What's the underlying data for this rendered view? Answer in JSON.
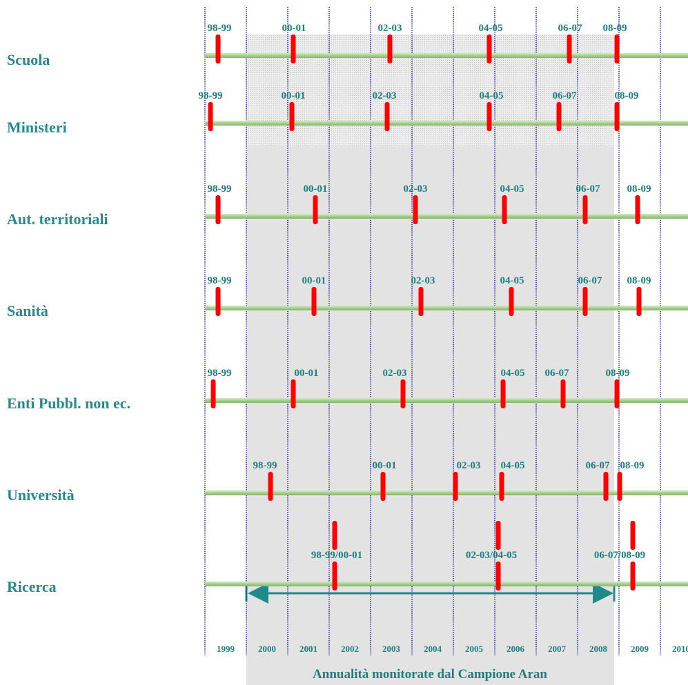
{
  "rows": [
    {
      "label": "Scuola",
      "contracts": [
        "98-99",
        "00-01",
        "02-03",
        "04-05",
        "06-07",
        "08-09"
      ]
    },
    {
      "label": "Ministeri",
      "contracts": [
        "98-99",
        "00-01",
        "02-03",
        "04-05",
        "06-07",
        "08-09"
      ]
    },
    {
      "label": "Aut. territoriali",
      "contracts": [
        "98-99",
        "00-01",
        "02-03",
        "04-05",
        "06-07",
        "08-09"
      ]
    },
    {
      "label": "Sanità",
      "contracts": [
        "98-99",
        "00-01",
        "02-03",
        "04-05",
        "06-07",
        "08-09"
      ]
    },
    {
      "label": "Enti Pubbl. non ec.",
      "contracts": [
        "98-99",
        "00-01",
        "02-03",
        "04-05",
        "06-07",
        "08-09"
      ]
    },
    {
      "label": "Università",
      "contracts": [
        "98-99",
        "00-01",
        "02-03",
        "04-05",
        "06-07",
        "08-09"
      ]
    },
    {
      "label": "Ricerca",
      "contracts": [
        "98-99/00-01",
        "02-03/04-05",
        "06-07/08-09"
      ]
    }
  ],
  "years": [
    "1999",
    "2000",
    "2001",
    "2002",
    "2003",
    "2004",
    "2005",
    "2006",
    "2007",
    "2008",
    "2009",
    "2010"
  ],
  "footer": "Annualità monitorate dal Campione Aran"
}
